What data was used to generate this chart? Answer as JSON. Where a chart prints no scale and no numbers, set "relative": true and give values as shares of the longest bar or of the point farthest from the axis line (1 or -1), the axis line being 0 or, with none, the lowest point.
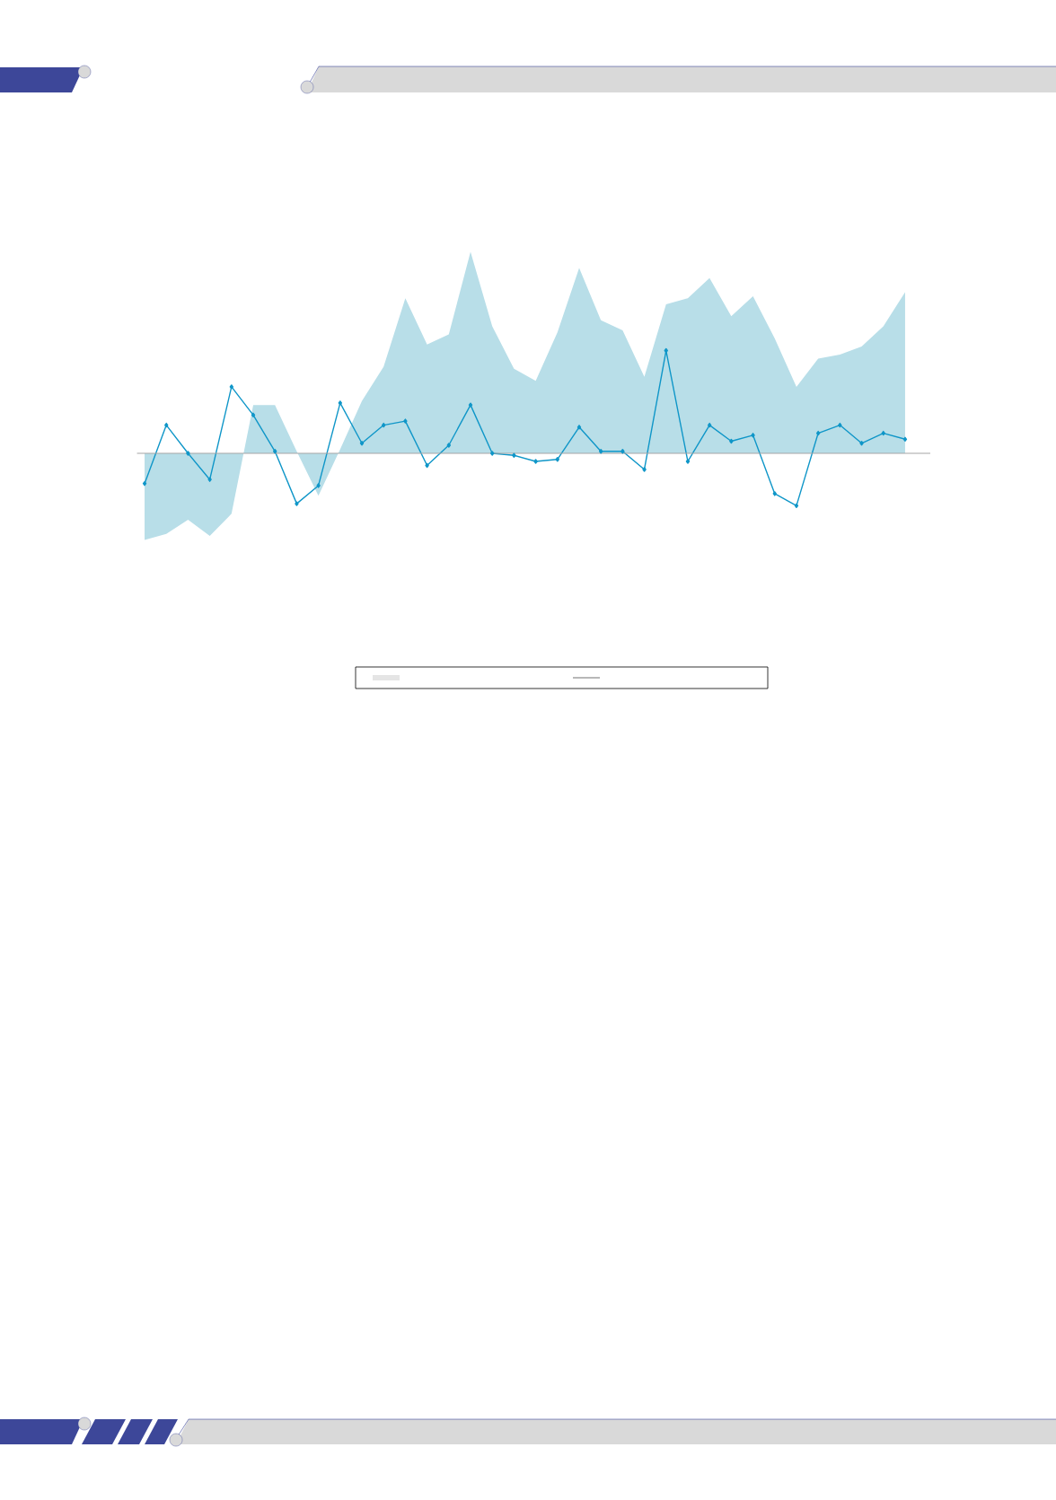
{
  "chart_data": {
    "type": "area",
    "relative": true,
    "categories": [
      null,
      null,
      null,
      null,
      null,
      null,
      null,
      null,
      null,
      null,
      null,
      null,
      null,
      null,
      null,
      null,
      null,
      null,
      null,
      null,
      null,
      null,
      null,
      null,
      null,
      null,
      null,
      null,
      null,
      null,
      null,
      null,
      null,
      null,
      null,
      null
    ],
    "series": [
      {
        "color": "#b8dee8",
        "values": [
          -0.43,
          -0.4,
          -0.33,
          -0.41,
          -0.3,
          0.24,
          0.24,
          0.01,
          -0.21,
          0.02,
          0.26,
          0.43,
          0.77,
          0.54,
          0.59,
          1,
          0.63,
          0.42,
          0.36,
          0.6,
          0.92,
          0.66,
          0.61,
          0.38,
          0.74,
          0.77,
          0.87,
          0.68,
          0.78,
          0.57,
          0.33,
          0.47,
          0.49,
          0.53,
          0.63,
          0.8
        ]
      },
      {
        "type": "line",
        "marker": "diamond",
        "color": "#0f96c8",
        "values": [
          -0.15,
          0.14,
          0.0,
          -0.13,
          0.33,
          0.19,
          0.01,
          -0.25,
          -0.16,
          0.25,
          0.05,
          0.14,
          0.16,
          -0.06,
          0.04,
          0.24,
          0.0,
          -0.01,
          -0.04,
          -0.03,
          0.13,
          0.01,
          0.01,
          -0.08,
          0.51,
          -0.04,
          0.14,
          0.06,
          0.09,
          -0.2,
          -0.26,
          0.1,
          0.14,
          0.05,
          0.1,
          0.07
        ]
      }
    ]
  }
}
